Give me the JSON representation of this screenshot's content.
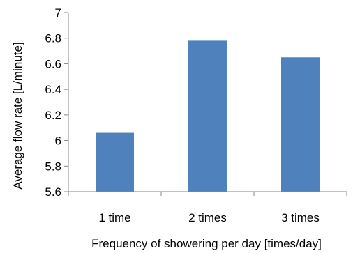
{
  "chart_data": {
    "type": "bar",
    "categories": [
      "1 time",
      "2 times",
      "3 times"
    ],
    "values": [
      6.06,
      6.78,
      6.65
    ],
    "xlabel": "Frequency of showering per day [times/day]",
    "ylabel": "Average flow rate [L/minute]",
    "ylim": [
      5.6,
      7.0
    ],
    "yticks": [
      "5.6",
      "5.8",
      "6",
      "6.2",
      "6.4",
      "6.6",
      "6.8",
      "7"
    ],
    "grid": false,
    "legend": "none",
    "bar_color": "#4f81bd",
    "axis_color": "#878787"
  }
}
